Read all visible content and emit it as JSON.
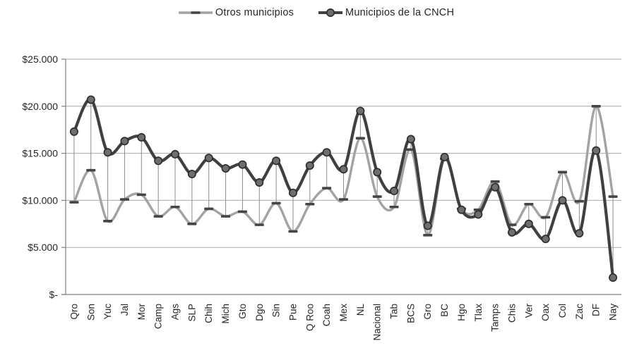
{
  "chart_data": {
    "type": "line",
    "title": "",
    "xlabel": "",
    "ylabel": "",
    "ylim": [
      0,
      25000
    ],
    "grid": true,
    "legend_position": "top",
    "high_low_lines": true,
    "smoothed": true,
    "categories": [
      "Qro",
      "Son",
      "Yuc",
      "Jal",
      "Mor",
      "Camp",
      "Ags",
      "SLP",
      "Chih",
      "Mich",
      "Gto",
      "Dgo",
      "Sin",
      "Pue",
      "Q Roo",
      "Coah",
      "Mex",
      "NL",
      "Nacional",
      "Tab",
      "BCS",
      "Gro",
      "BC",
      "Hgo",
      "Tlax",
      "Tamps",
      "Chis",
      "Ver",
      "Oax",
      "Col",
      "Zac",
      "DF",
      "Nay"
    ],
    "y_ticks": [
      {
        "label": "$25.000",
        "value": 25000
      },
      {
        "label": "$20.000",
        "value": 20000
      },
      {
        "label": "$15.000",
        "value": 15000
      },
      {
        "label": "$10.000",
        "value": 10000
      },
      {
        "label": "$5.000",
        "value": 5000
      },
      {
        "label": "$-",
        "value": 0
      }
    ],
    "series": [
      {
        "name": "Otros municipios",
        "color": "#a3a3a3",
        "marker": "dash",
        "values": [
          9800,
          13200,
          7800,
          10100,
          10600,
          8300,
          9300,
          7500,
          9100,
          8300,
          8800,
          7400,
          9700,
          6700,
          9600,
          11300,
          10100,
          16600,
          10400,
          9300,
          15400,
          6300,
          14400,
          9100,
          9000,
          12000,
          7400,
          9600,
          8200,
          13000,
          9900,
          20000,
          10400
        ]
      },
      {
        "name": "Municipios de la CNCH",
        "color": "#404040",
        "marker": "circle",
        "values": [
          17300,
          20700,
          15100,
          16300,
          16700,
          14200,
          14900,
          12800,
          14500,
          13400,
          13800,
          11900,
          14200,
          10800,
          13700,
          15100,
          13300,
          19500,
          13000,
          11000,
          16500,
          7300,
          14600,
          9000,
          8500,
          11400,
          6600,
          7500,
          5900,
          10000,
          6500,
          15300,
          1800
        ]
      }
    ]
  },
  "colors": {
    "background": "#ffffff",
    "grid": "#aaaaaa",
    "axis": "#7f7f7f",
    "text": "#262626",
    "high_low": "#8c8c8c",
    "dash_marker": "#454545",
    "circle_fill": "#6e6e6e",
    "circle_stroke": "#2b2b2b"
  }
}
